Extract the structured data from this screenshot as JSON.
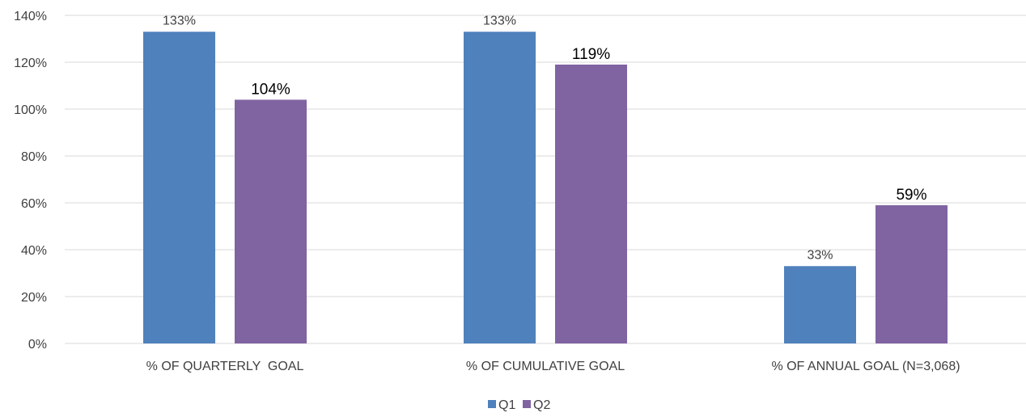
{
  "chart_data": {
    "type": "bar",
    "title": "",
    "xlabel": "",
    "ylabel": "",
    "categories": [
      "% OF QUARTERLY  GOAL",
      "% OF CUMULATIVE GOAL",
      "% OF ANNUAL GOAL (N=3,068)"
    ],
    "series": [
      {
        "name": "Q1",
        "values": [
          133,
          133,
          33
        ],
        "labels": [
          "133%",
          "133%",
          "33%"
        ],
        "color": "#4f81bd"
      },
      {
        "name": "Q2",
        "values": [
          104,
          119,
          59
        ],
        "labels": [
          "104%",
          "119%",
          "59%"
        ],
        "color": "#8064a2"
      }
    ],
    "ylim": [
      0,
      140
    ],
    "yticks": [
      0,
      20,
      40,
      60,
      80,
      100,
      120,
      140
    ],
    "ytick_labels": [
      "0%",
      "20%",
      "40%",
      "60%",
      "80%",
      "100%",
      "120%",
      "140%"
    ],
    "grid": true,
    "gridline_color": "#d9d9d9",
    "legend": {
      "position": "bottom"
    }
  }
}
